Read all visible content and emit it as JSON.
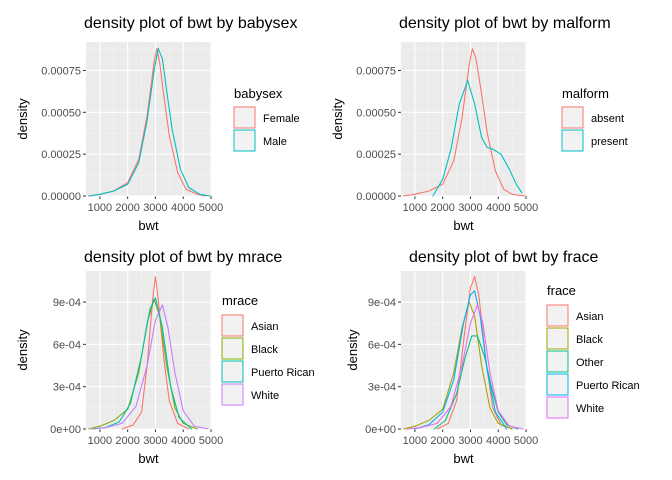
{
  "chart_data": [
    {
      "type": "line",
      "title": "density plot of bwt by babysex",
      "xlabel": "bwt",
      "ylabel": "density",
      "xlim": [
        500,
        5000
      ],
      "ylim": [
        0,
        0.00092
      ],
      "x_ticks": [
        1000,
        2000,
        3000,
        4000,
        5000
      ],
      "x_tick_labels": [
        "1000",
        "2000",
        "3000",
        "4000",
        "5000"
      ],
      "y_ticks": [
        0,
        0.00025,
        0.0005,
        0.00075
      ],
      "y_tick_labels": [
        "0.00000",
        "0.00025",
        "0.00050",
        "0.00075"
      ],
      "grid": true,
      "legend_title": "babysex",
      "legend_position": "right",
      "series": [
        {
          "name": "Female",
          "color": "#F8766D",
          "points": [
            [
              595,
              0
            ],
            [
              1000,
              1e-05
            ],
            [
              1500,
              3e-05
            ],
            [
              2000,
              8e-05
            ],
            [
              2400,
              0.00022
            ],
            [
              2700,
              0.00048
            ],
            [
              2950,
              0.0008
            ],
            [
              3050,
              0.00088
            ],
            [
              3150,
              0.0008
            ],
            [
              3300,
              0.0006
            ],
            [
              3500,
              0.00036
            ],
            [
              3800,
              0.00014
            ],
            [
              4100,
              4e-05
            ],
            [
              4500,
              1e-05
            ],
            [
              4800,
              0
            ]
          ]
        },
        {
          "name": "Male",
          "color": "#00BFC4",
          "points": [
            [
              625,
              0
            ],
            [
              1000,
              1e-05
            ],
            [
              1500,
              3e-05
            ],
            [
              2000,
              7e-05
            ],
            [
              2400,
              0.0002
            ],
            [
              2700,
              0.00045
            ],
            [
              2950,
              0.00075
            ],
            [
              3100,
              0.00088
            ],
            [
              3250,
              0.00082
            ],
            [
              3400,
              0.00063
            ],
            [
              3600,
              0.0004
            ],
            [
              3900,
              0.00016
            ],
            [
              4200,
              5e-05
            ],
            [
              4600,
              1e-05
            ],
            [
              4970,
              0
            ]
          ]
        }
      ]
    },
    {
      "type": "line",
      "title": "density plot of bwt by malform",
      "xlabel": "bwt",
      "ylabel": "density",
      "xlim": [
        500,
        5000
      ],
      "ylim": [
        0,
        0.00092
      ],
      "x_ticks": [
        1000,
        2000,
        3000,
        4000,
        5000
      ],
      "x_tick_labels": [
        "1000",
        "2000",
        "3000",
        "4000",
        "5000"
      ],
      "y_ticks": [
        0,
        0.00025,
        0.0005,
        0.00075
      ],
      "y_tick_labels": [
        "0.00000",
        "0.00025",
        "0.00050",
        "0.00075"
      ],
      "grid": true,
      "legend_title": "malform",
      "legend_position": "right",
      "series": [
        {
          "name": "absent",
          "color": "#F8766D",
          "points": [
            [
              595,
              0
            ],
            [
              1000,
              1e-05
            ],
            [
              1500,
              3e-05
            ],
            [
              2000,
              7e-05
            ],
            [
              2400,
              0.00021
            ],
            [
              2700,
              0.00047
            ],
            [
              2950,
              0.00078
            ],
            [
              3070,
              0.00088
            ],
            [
              3200,
              0.00082
            ],
            [
              3400,
              0.00061
            ],
            [
              3600,
              0.00038
            ],
            [
              3900,
              0.00015
            ],
            [
              4200,
              4e-05
            ],
            [
              4500,
              1e-05
            ],
            [
              4970,
              0
            ]
          ]
        },
        {
          "name": "present",
          "color": "#00BFC4",
          "points": [
            [
              1650,
              0
            ],
            [
              2000,
              0.0001
            ],
            [
              2300,
              0.00028
            ],
            [
              2600,
              0.00055
            ],
            [
              2900,
              0.00069
            ],
            [
              3150,
              0.00055
            ],
            [
              3400,
              0.00035
            ],
            [
              3600,
              0.00029
            ],
            [
              3800,
              0.00028
            ],
            [
              4100,
              0.00025
            ],
            [
              4400,
              0.00016
            ],
            [
              4650,
              7e-05
            ],
            [
              4850,
              2e-05
            ]
          ]
        }
      ]
    },
    {
      "type": "line",
      "title": "density plot of bwt by mrace",
      "xlabel": "bwt",
      "ylabel": "density",
      "xlim": [
        500,
        5000
      ],
      "ylim": [
        0,
        0.00112
      ],
      "x_ticks": [
        1000,
        2000,
        3000,
        4000,
        5000
      ],
      "x_tick_labels": [
        "1000",
        "2000",
        "3000",
        "4000",
        "5000"
      ],
      "y_ticks": [
        0,
        0.0003,
        0.0006,
        0.0009
      ],
      "y_tick_labels": [
        "0e+00",
        "3e-04",
        "6e-04",
        "9e-04"
      ],
      "grid": true,
      "legend_title": "mrace",
      "legend_position": "right",
      "series": [
        {
          "name": "Asian",
          "color": "#F8766D",
          "points": [
            [
              1800,
              0
            ],
            [
              2200,
              3e-05
            ],
            [
              2500,
              0.00012
            ],
            [
              2700,
              0.00045
            ],
            [
              2900,
              0.00092
            ],
            [
              3000,
              0.00108
            ],
            [
              3100,
              0.00092
            ],
            [
              3300,
              0.0005
            ],
            [
              3500,
              0.0002
            ],
            [
              3800,
              4e-05
            ],
            [
              4200,
              0
            ]
          ]
        },
        {
          "name": "Black",
          "color": "#7CAE00",
          "points": [
            [
              600,
              0
            ],
            [
              1000,
              2e-05
            ],
            [
              1500,
              6e-05
            ],
            [
              2000,
              0.00014
            ],
            [
              2400,
              0.0004
            ],
            [
              2700,
              0.00075
            ],
            [
              2950,
              0.00092
            ],
            [
              3150,
              0.0008
            ],
            [
              3400,
              0.00045
            ],
            [
              3700,
              0.00015
            ],
            [
              4000,
              4e-05
            ],
            [
              4500,
              0
            ]
          ]
        },
        {
          "name": "Puerto Rican",
          "color": "#00BFAA",
          "points": [
            [
              800,
              0
            ],
            [
              1200,
              1e-05
            ],
            [
              1700,
              5e-05
            ],
            [
              2100,
              0.00018
            ],
            [
              2500,
              0.00052
            ],
            [
              2800,
              0.00085
            ],
            [
              3000,
              0.00093
            ],
            [
              3250,
              0.00072
            ],
            [
              3550,
              0.0003
            ],
            [
              3850,
              8e-05
            ],
            [
              4300,
              0
            ]
          ]
        },
        {
          "name": "White",
          "color": "#C77CFF",
          "points": [
            [
              700,
              0
            ],
            [
              1200,
              1e-05
            ],
            [
              1800,
              4e-05
            ],
            [
              2300,
              0.00016
            ],
            [
              2700,
              0.00045
            ],
            [
              3000,
              0.00077
            ],
            [
              3250,
              0.00088
            ],
            [
              3450,
              0.00072
            ],
            [
              3700,
              0.0004
            ],
            [
              4000,
              0.00013
            ],
            [
              4400,
              2e-05
            ],
            [
              4900,
              0
            ]
          ]
        }
      ]
    },
    {
      "type": "line",
      "title": "density plot of bwt by frace",
      "xlabel": "bwt",
      "ylabel": "density",
      "xlim": [
        500,
        5000
      ],
      "ylim": [
        0,
        0.00112
      ],
      "x_ticks": [
        1000,
        2000,
        3000,
        4000,
        5000
      ],
      "x_tick_labels": [
        "1000",
        "2000",
        "3000",
        "4000",
        "5000"
      ],
      "y_ticks": [
        0,
        0.0003,
        0.0006,
        0.0009
      ],
      "y_tick_labels": [
        "0e+00",
        "3e-04",
        "6e-04",
        "9e-04"
      ],
      "grid": true,
      "legend_title": "frace",
      "legend_position": "right",
      "series": [
        {
          "name": "Asian",
          "color": "#F8766D",
          "points": [
            [
              1800,
              0
            ],
            [
              2200,
              4e-05
            ],
            [
              2500,
              0.0002
            ],
            [
              2800,
              0.0007
            ],
            [
              3000,
              0.001
            ],
            [
              3150,
              0.00108
            ],
            [
              3300,
              0.00095
            ],
            [
              3550,
              0.0005
            ],
            [
              3800,
              0.00015
            ],
            [
              4100,
              3e-05
            ],
            [
              4500,
              0
            ]
          ]
        },
        {
          "name": "Black",
          "color": "#A3A500",
          "points": [
            [
              600,
              0
            ],
            [
              1000,
              2e-05
            ],
            [
              1500,
              6e-05
            ],
            [
              2000,
              0.00014
            ],
            [
              2400,
              0.0004
            ],
            [
              2700,
              0.00072
            ],
            [
              2950,
              0.0009
            ],
            [
              3150,
              0.0008
            ],
            [
              3400,
              0.00045
            ],
            [
              3700,
              0.00015
            ],
            [
              4000,
              4e-05
            ],
            [
              4500,
              0
            ]
          ]
        },
        {
          "name": "Other",
          "color": "#00BF7D",
          "points": [
            [
              1700,
              0
            ],
            [
              2100,
              6e-05
            ],
            [
              2500,
              0.00025
            ],
            [
              2800,
              0.0005
            ],
            [
              3050,
              0.00066
            ],
            [
              3250,
              0.00066
            ],
            [
              3500,
              0.00052
            ],
            [
              3750,
              0.0003
            ],
            [
              4000,
              0.00012
            ],
            [
              4300,
              3e-05
            ],
            [
              4700,
              0
            ]
          ]
        },
        {
          "name": "Puerto Rican",
          "color": "#00B0F6",
          "points": [
            [
              1000,
              0
            ],
            [
              1500,
              3e-05
            ],
            [
              2000,
              0.00012
            ],
            [
              2400,
              0.00035
            ],
            [
              2750,
              0.00075
            ],
            [
              3000,
              0.00095
            ],
            [
              3150,
              0.00098
            ],
            [
              3350,
              0.0008
            ],
            [
              3600,
              0.00042
            ],
            [
              3900,
              0.00012
            ],
            [
              4300,
              0
            ]
          ]
        },
        {
          "name": "White",
          "color": "#E76BF3",
          "points": [
            [
              700,
              0
            ],
            [
              1200,
              1e-05
            ],
            [
              1800,
              4e-05
            ],
            [
              2300,
              0.00016
            ],
            [
              2700,
              0.00045
            ],
            [
              3000,
              0.00075
            ],
            [
              3250,
              0.00088
            ],
            [
              3450,
              0.00075
            ],
            [
              3700,
              0.0004
            ],
            [
              4000,
              0.00013
            ],
            [
              4400,
              2e-05
            ],
            [
              4900,
              0
            ]
          ]
        }
      ]
    }
  ]
}
